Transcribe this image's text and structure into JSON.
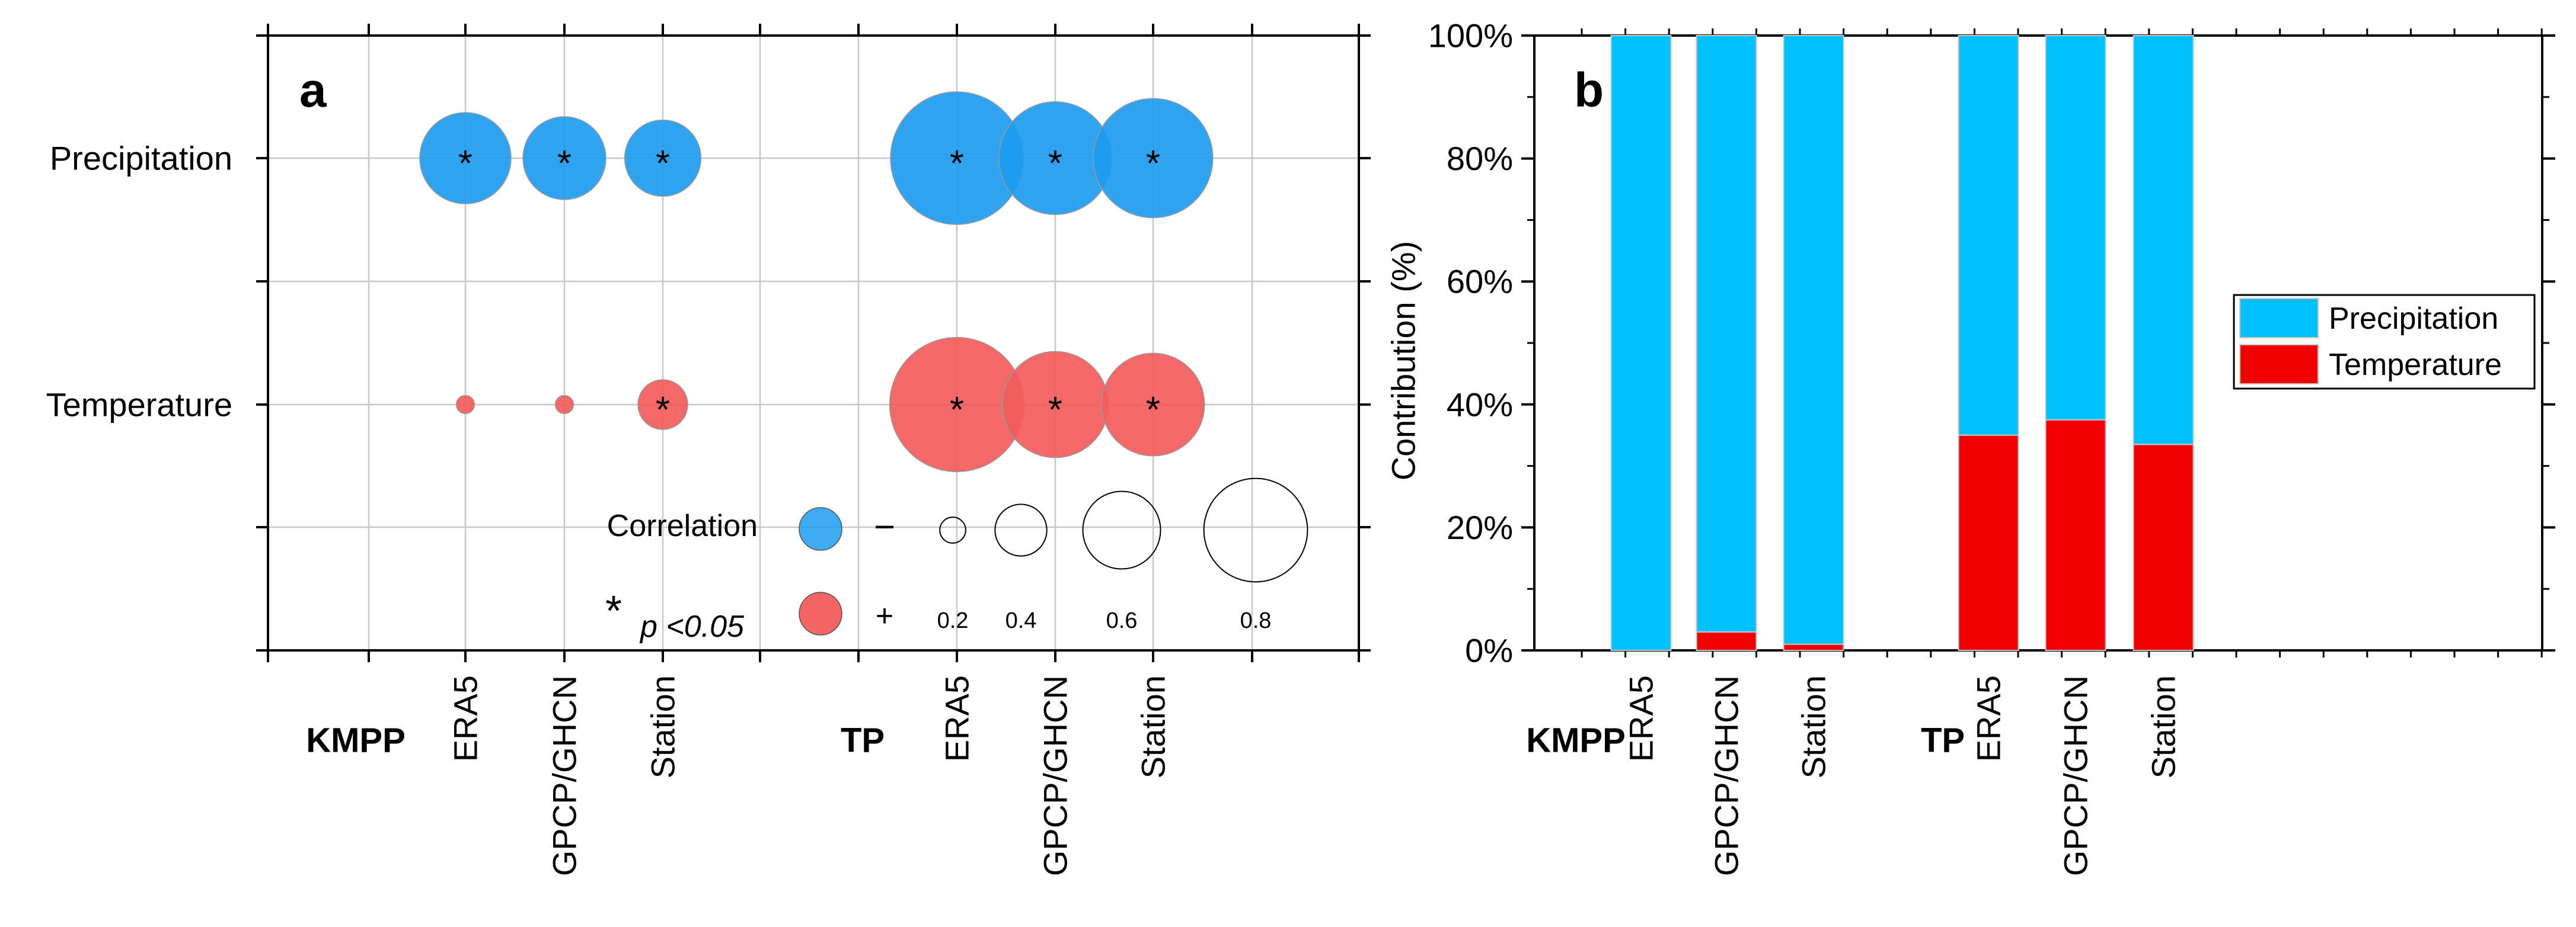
{
  "chart_data": [
    {
      "panel_label": "a",
      "type": "bubble",
      "y_categories": [
        "Precipitation",
        "Temperature"
      ],
      "groups": [
        {
          "name": "KMPP",
          "categories": [
            "ERA5",
            "GPCP/GHCN",
            "Station"
          ]
        },
        {
          "name": "TP",
          "categories": [
            "ERA5",
            "GPCP/GHCN",
            "Station"
          ]
        }
      ],
      "points": [
        {
          "group": "KMPP",
          "x": "ERA5",
          "y": "Precipitation",
          "correlation": 0.55,
          "sign": "-",
          "significant": true
        },
        {
          "group": "KMPP",
          "x": "GPCP/GHCN",
          "y": "Precipitation",
          "correlation": 0.5,
          "sign": "-",
          "significant": true
        },
        {
          "group": "KMPP",
          "x": "Station",
          "y": "Precipitation",
          "correlation": 0.46,
          "sign": "-",
          "significant": true
        },
        {
          "group": "TP",
          "x": "ERA5",
          "y": "Precipitation",
          "correlation": 0.8,
          "sign": "-",
          "significant": true
        },
        {
          "group": "TP",
          "x": "GPCP/GHCN",
          "y": "Precipitation",
          "correlation": 0.68,
          "sign": "-",
          "significant": true
        },
        {
          "group": "TP",
          "x": "Station",
          "y": "Precipitation",
          "correlation": 0.72,
          "sign": "-",
          "significant": true
        },
        {
          "group": "KMPP",
          "x": "ERA5",
          "y": "Temperature",
          "correlation": 0.11,
          "sign": "+",
          "significant": false
        },
        {
          "group": "KMPP",
          "x": "GPCP/GHCN",
          "y": "Temperature",
          "correlation": 0.11,
          "sign": "+",
          "significant": false
        },
        {
          "group": "KMPP",
          "x": "Station",
          "y": "Temperature",
          "correlation": 0.3,
          "sign": "+",
          "significant": true
        },
        {
          "group": "TP",
          "x": "ERA5",
          "y": "Temperature",
          "correlation": 0.81,
          "sign": "+",
          "significant": true
        },
        {
          "group": "TP",
          "x": "GPCP/GHCN",
          "y": "Temperature",
          "correlation": 0.64,
          "sign": "+",
          "significant": true
        },
        {
          "group": "TP",
          "x": "Station",
          "y": "Temperature",
          "correlation": 0.62,
          "sign": "+",
          "significant": true
        }
      ],
      "legend": {
        "title": "Correlation",
        "negative_label": "−",
        "positive_label": "+",
        "significance_marker": "*",
        "significance_label": "p <0.05",
        "size_values": [
          0.2,
          0.4,
          0.6,
          0.8
        ],
        "size_labels": [
          "0.2",
          "0.4",
          "0.6",
          "0.8"
        ]
      },
      "colors": {
        "negative": "#1E9BF0",
        "positive": "#F25C5C"
      }
    },
    {
      "panel_label": "b",
      "type": "stacked_bar",
      "ylabel": "Contribution (%)",
      "ylim": [
        0,
        100
      ],
      "y_ticks": [
        0,
        20,
        40,
        60,
        80,
        100
      ],
      "y_tick_labels": [
        "0%",
        "20%",
        "40%",
        "60%",
        "80%",
        "100%"
      ],
      "groups": [
        {
          "name": "KMPP",
          "categories": [
            "ERA5",
            "GPCP/GHCN",
            "Station"
          ]
        },
        {
          "name": "TP",
          "categories": [
            "ERA5",
            "GPCP/GHCN",
            "Station"
          ]
        }
      ],
      "series": [
        {
          "name": "Temperature",
          "values": [
            0,
            3,
            1,
            35,
            37.5,
            33.5
          ]
        },
        {
          "name": "Precipitation",
          "values": [
            100,
            97,
            99,
            65,
            62.5,
            66.5
          ]
        }
      ],
      "legend_entries": [
        "Precipitation",
        "Temperature"
      ],
      "legend_position": "right",
      "colors": {
        "Precipitation": "#00BFFF",
        "Temperature": "#EE0000"
      }
    }
  ]
}
